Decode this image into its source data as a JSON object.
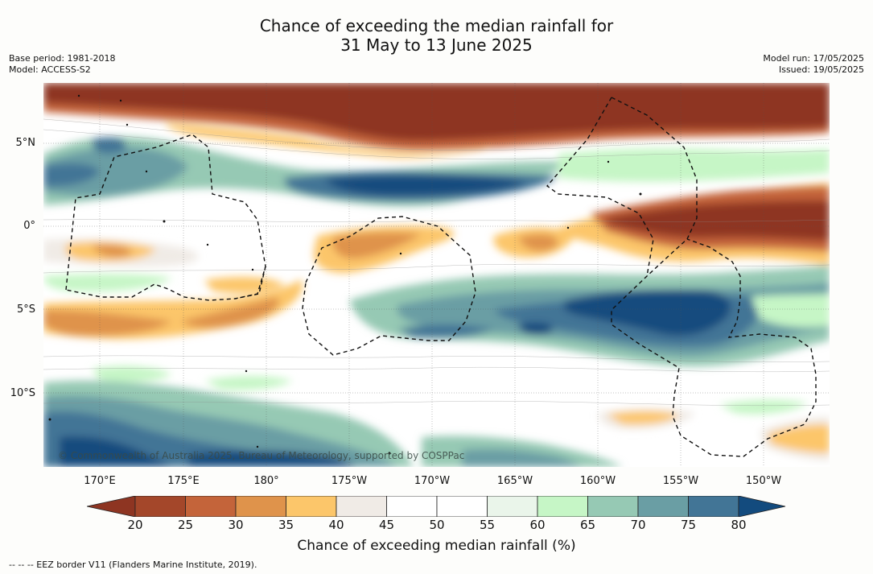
{
  "title": {
    "line1": "Chance of exceeding the median rainfall for",
    "line2": "31 May to 13 June 2025"
  },
  "meta_left": {
    "base_period": "Base period: 1981-2018",
    "model": "Model: ACCESS-S2"
  },
  "meta_right": {
    "model_run": "Model run: 17/05/2025",
    "issued": "Issued: 19/05/2025"
  },
  "copyright": "© Commonwealth of Australia 2025, Bureau of Meteorology, supported by COSPPac",
  "lon_labels": [
    "170°E",
    "175°E",
    "180°",
    "175°W",
    "170°W",
    "165°W",
    "160°W",
    "155°W",
    "150°W"
  ],
  "lat_labels": [
    "5°N",
    "0°",
    "5°S",
    "10°S"
  ],
  "colorbar": {
    "ticks": [
      "20",
      "25",
      "30",
      "35",
      "40",
      "45",
      "50",
      "55",
      "60",
      "65",
      "70",
      "75",
      "80"
    ],
    "colors": [
      "#a4472a",
      "#c4643a",
      "#df934b",
      "#fcc66a",
      "#f0ebe6",
      "#ffffff",
      "#ffffff",
      "#eaf5ea",
      "#c6f6c6",
      "#96c9b4",
      "#6a9ea4",
      "#427596"
    ],
    "low_color": "#8e3522",
    "high_color": "#134b7e",
    "title": "Chance of exceeding median rainfall (%)"
  },
  "footnote": "--  --  -- EEZ border V11 (Flanders Marine Institute, 2019)."
}
